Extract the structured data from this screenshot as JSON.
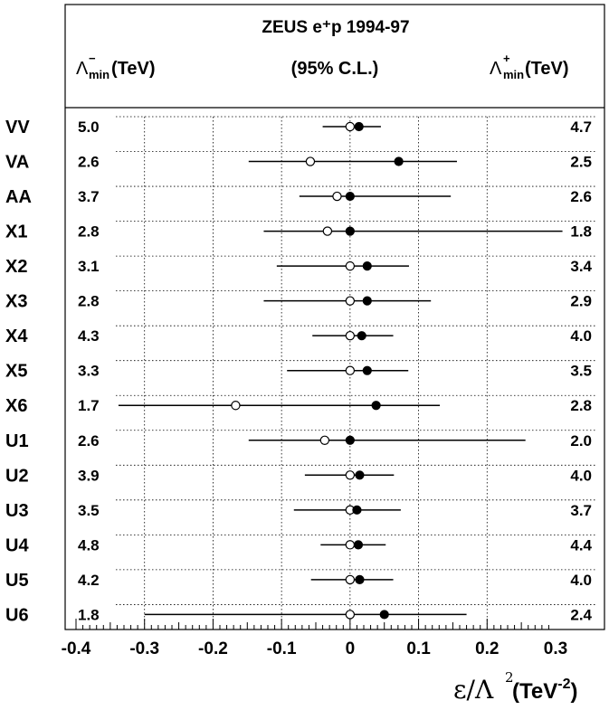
{
  "chart_data": {
    "type": "scatter",
    "title": "ZEUS e⁺p 1994-97",
    "cl_label": "(95% C.L.)",
    "left_header": {
      "symbol": "Λ",
      "sup": "−",
      "sub": "min",
      "unit": "(TeV)"
    },
    "right_header": {
      "symbol": "Λ",
      "sup": "+",
      "sub": "min",
      "unit": "(TeV)"
    },
    "xlabel": {
      "main": "ε/Λ",
      "pow": "2",
      "unit_open": " (TeV",
      "unit_pow": "-2",
      "unit_close": ")"
    },
    "xlim": [
      -0.4,
      0.3
    ],
    "xticks": [
      "-0.4",
      "-0.3",
      "-0.2",
      "-0.1",
      "0",
      "0.1",
      "0.2",
      "0.3"
    ],
    "xtick_values": [
      -0.4,
      -0.3,
      -0.2,
      -0.1,
      0,
      0.1,
      0.2,
      0.3
    ],
    "grid": true,
    "legend": "none",
    "categories": [
      "VV",
      "VA",
      "AA",
      "X1",
      "X2",
      "X3",
      "X4",
      "X5",
      "X6",
      "U1",
      "U2",
      "U3",
      "U4",
      "U5",
      "U6"
    ],
    "lambda_minus": [
      "5.0",
      "2.6",
      "3.7",
      "2.8",
      "3.1",
      "2.8",
      "4.3",
      "3.3",
      "1.7",
      "2.6",
      "3.9",
      "3.5",
      "4.8",
      "4.2",
      "1.8"
    ],
    "lambda_plus": [
      "4.7",
      "2.5",
      "2.6",
      "1.8",
      "3.4",
      "2.9",
      "4.0",
      "3.5",
      "2.8",
      "2.0",
      "4.0",
      "3.7",
      "4.4",
      "4.0",
      "2.4"
    ],
    "open_points": [
      0.0,
      -0.058,
      -0.019,
      -0.033,
      0.0,
      0.0,
      0.0,
      0.0,
      -0.167,
      -0.037,
      0.0,
      0.0,
      0.0,
      0.0,
      0.0
    ],
    "filled_points": [
      0.013,
      0.071,
      0.0,
      0.0,
      0.025,
      0.025,
      0.017,
      0.025,
      0.038,
      0.0,
      0.014,
      0.01,
      0.012,
      0.014,
      0.05
    ],
    "error_low": [
      -0.04,
      -0.148,
      -0.074,
      -0.126,
      -0.107,
      -0.126,
      -0.055,
      -0.092,
      -0.338,
      -0.148,
      -0.066,
      -0.082,
      -0.043,
      -0.057,
      -0.3
    ],
    "error_high": [
      0.045,
      0.156,
      0.147,
      0.31,
      0.086,
      0.118,
      0.063,
      0.085,
      0.131,
      0.256,
      0.064,
      0.074,
      0.052,
      0.063,
      0.17
    ]
  }
}
